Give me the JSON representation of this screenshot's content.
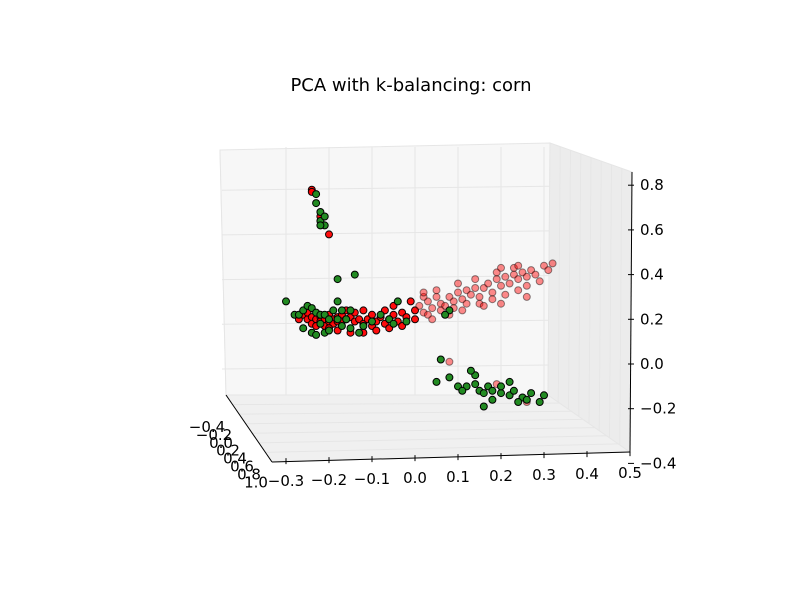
{
  "chart_data": {
    "type": "scatter3d",
    "title": "PCA with k-balancing: corn",
    "xlabel": "",
    "ylabel": "",
    "zlabel": "",
    "grid": true,
    "x_ticks": [
      "−0.3",
      "−0.2",
      "−0.1",
      "0.0",
      "0.1",
      "0.2",
      "0.3",
      "0.4",
      "0.5"
    ],
    "y_ticks": [
      "−0.4",
      "−0.2",
      "0.0",
      "0.2",
      "0.4",
      "0.6",
      "0.8",
      "1.0"
    ],
    "z_ticks": [
      "−0.4",
      "−0.2",
      "0.0",
      "0.2",
      "0.4",
      "0.6",
      "0.8"
    ],
    "series": [
      {
        "color": "#228b22",
        "points": [
          [
            -0.23,
            0.76
          ],
          [
            -0.23,
            0.72
          ],
          [
            -0.22,
            0.68
          ],
          [
            -0.22,
            0.64
          ],
          [
            -0.21,
            0.66
          ],
          [
            -0.21,
            0.62
          ],
          [
            -0.22,
            0.62
          ],
          [
            -0.18,
            0.28
          ],
          [
            -0.17,
            0.24
          ],
          [
            -0.15,
            0.24
          ],
          [
            -0.04,
            0.28
          ],
          [
            -0.14,
            0.4
          ],
          [
            -0.3,
            0.28
          ],
          [
            -0.28,
            0.22
          ],
          [
            -0.27,
            0.22
          ],
          [
            -0.26,
            0.24
          ],
          [
            -0.25,
            0.26
          ],
          [
            -0.24,
            0.25
          ],
          [
            -0.23,
            0.23
          ],
          [
            -0.22,
            0.22
          ],
          [
            -0.21,
            0.22
          ],
          [
            -0.2,
            0.2
          ],
          [
            -0.19,
            0.24
          ],
          [
            -0.18,
            0.2
          ],
          [
            -0.17,
            0.17
          ],
          [
            -0.16,
            0.2
          ],
          [
            -0.15,
            0.16
          ],
          [
            -0.13,
            0.14
          ],
          [
            -0.12,
            0.17
          ],
          [
            -0.1,
            0.19
          ],
          [
            -0.08,
            0.22
          ],
          [
            -0.26,
            0.16
          ],
          [
            -0.24,
            0.14
          ],
          [
            -0.22,
            0.18
          ],
          [
            -0.21,
            0.14
          ],
          [
            -0.2,
            0.15
          ],
          [
            -0.23,
            0.13
          ],
          [
            -0.06,
            0.2
          ],
          [
            -0.05,
            0.18
          ],
          [
            0.08,
            0.24
          ],
          [
            0.07,
            0.22
          ],
          [
            -0.02,
            0.19
          ],
          [
            -0.18,
            0.38
          ],
          [
            0.05,
            -0.08
          ],
          [
            0.08,
            -0.06
          ],
          [
            0.1,
            -0.1
          ],
          [
            0.12,
            -0.1
          ],
          [
            0.14,
            -0.09
          ],
          [
            0.15,
            -0.12
          ],
          [
            0.16,
            -0.13
          ],
          [
            0.17,
            -0.1
          ],
          [
            0.18,
            -0.12
          ],
          [
            0.2,
            -0.13
          ],
          [
            0.22,
            -0.14
          ],
          [
            0.23,
            -0.12
          ],
          [
            0.25,
            -0.15
          ],
          [
            0.26,
            -0.16
          ],
          [
            0.27,
            -0.13
          ],
          [
            0.29,
            -0.17
          ],
          [
            0.3,
            -0.14
          ],
          [
            0.14,
            -0.05
          ],
          [
            0.2,
            -0.1
          ],
          [
            0.22,
            -0.08
          ],
          [
            0.24,
            -0.17
          ],
          [
            0.16,
            -0.19
          ],
          [
            0.11,
            -0.12
          ],
          [
            0.18,
            -0.16
          ],
          [
            0.06,
            0.02
          ],
          [
            0.13,
            -0.03
          ]
        ]
      },
      {
        "color": "#ff0000",
        "points": [
          [
            -0.24,
            0.78
          ],
          [
            -0.24,
            0.77
          ],
          [
            -0.22,
            0.66
          ],
          [
            -0.2,
            0.58
          ],
          [
            0.08,
            0.01
          ],
          [
            0.26,
            -0.17
          ],
          [
            0.19,
            -0.09
          ],
          [
            -0.27,
            0.2
          ],
          [
            -0.26,
            0.22
          ],
          [
            -0.25,
            0.2
          ],
          [
            -0.25,
            0.23
          ],
          [
            -0.24,
            0.21
          ],
          [
            -0.24,
            0.18
          ],
          [
            -0.23,
            0.2
          ],
          [
            -0.23,
            0.17
          ],
          [
            -0.22,
            0.21
          ],
          [
            -0.22,
            0.19
          ],
          [
            -0.21,
            0.2
          ],
          [
            -0.21,
            0.17
          ],
          [
            -0.2,
            0.22
          ],
          [
            -0.2,
            0.19
          ],
          [
            -0.19,
            0.2
          ],
          [
            -0.19,
            0.18
          ],
          [
            -0.18,
            0.21
          ],
          [
            -0.18,
            0.19
          ],
          [
            -0.17,
            0.22
          ],
          [
            -0.17,
            0.19
          ],
          [
            -0.16,
            0.2
          ],
          [
            -0.15,
            0.21
          ],
          [
            -0.14,
            0.19
          ],
          [
            -0.13,
            0.2
          ],
          [
            -0.12,
            0.18
          ],
          [
            -0.11,
            0.2
          ],
          [
            -0.1,
            0.17
          ],
          [
            -0.09,
            0.19
          ],
          [
            -0.08,
            0.21
          ],
          [
            -0.07,
            0.18
          ],
          [
            -0.06,
            0.2
          ],
          [
            -0.05,
            0.22
          ],
          [
            -0.04,
            0.19
          ],
          [
            -0.03,
            0.23
          ],
          [
            -0.02,
            0.21
          ],
          [
            0.0,
            0.24
          ],
          [
            0.01,
            0.26
          ],
          [
            0.02,
            0.23
          ],
          [
            0.03,
            0.28
          ],
          [
            0.04,
            0.25
          ],
          [
            0.05,
            0.3
          ],
          [
            0.06,
            0.27
          ],
          [
            0.07,
            0.26
          ],
          [
            0.08,
            0.3
          ],
          [
            0.09,
            0.28
          ],
          [
            0.1,
            0.32
          ],
          [
            0.11,
            0.29
          ],
          [
            0.12,
            0.33
          ],
          [
            0.13,
            0.31
          ],
          [
            0.14,
            0.34
          ],
          [
            0.15,
            0.3
          ],
          [
            0.16,
            0.34
          ],
          [
            0.17,
            0.36
          ],
          [
            0.18,
            0.32
          ],
          [
            0.19,
            0.38
          ],
          [
            0.2,
            0.35
          ],
          [
            0.21,
            0.39
          ],
          [
            0.22,
            0.36
          ],
          [
            0.23,
            0.4
          ],
          [
            0.24,
            0.38
          ],
          [
            0.25,
            0.41
          ],
          [
            0.26,
            0.39
          ],
          [
            0.27,
            0.42
          ],
          [
            0.28,
            0.4
          ],
          [
            0.3,
            0.44
          ],
          [
            0.32,
            0.45
          ],
          [
            0.31,
            0.42
          ],
          [
            0.24,
            0.33
          ],
          [
            0.21,
            0.31
          ],
          [
            0.18,
            0.29
          ],
          [
            0.15,
            0.27
          ],
          [
            0.12,
            0.27
          ],
          [
            0.09,
            0.25
          ],
          [
            0.06,
            0.24
          ],
          [
            0.03,
            0.22
          ],
          [
            0.0,
            0.2
          ],
          [
            -0.03,
            0.17
          ],
          [
            -0.06,
            0.16
          ],
          [
            -0.09,
            0.15
          ],
          [
            -0.12,
            0.14
          ],
          [
            -0.15,
            0.14
          ],
          [
            -0.18,
            0.15
          ],
          [
            -0.2,
            0.16
          ],
          [
            -0.05,
            0.26
          ],
          [
            -0.01,
            0.28
          ],
          [
            0.02,
            0.3
          ],
          [
            0.05,
            0.33
          ],
          [
            0.1,
            0.36
          ],
          [
            0.14,
            0.38
          ],
          [
            0.19,
            0.41
          ],
          [
            0.23,
            0.43
          ],
          [
            0.02,
            0.32
          ],
          [
            0.04,
            0.2
          ],
          [
            0.08,
            0.22
          ],
          [
            0.11,
            0.24
          ],
          [
            0.16,
            0.26
          ],
          [
            0.2,
            0.27
          ],
          [
            0.26,
            0.35
          ],
          [
            0.29,
            0.37
          ],
          [
            -0.16,
            0.24
          ],
          [
            -0.14,
            0.23
          ],
          [
            -0.1,
            0.22
          ],
          [
            -0.07,
            0.24
          ],
          [
            -0.12,
            0.24
          ],
          [
            0.26,
            0.3
          ],
          [
            0.2,
            0.43
          ],
          [
            0.24,
            0.44
          ]
        ]
      }
    ]
  }
}
